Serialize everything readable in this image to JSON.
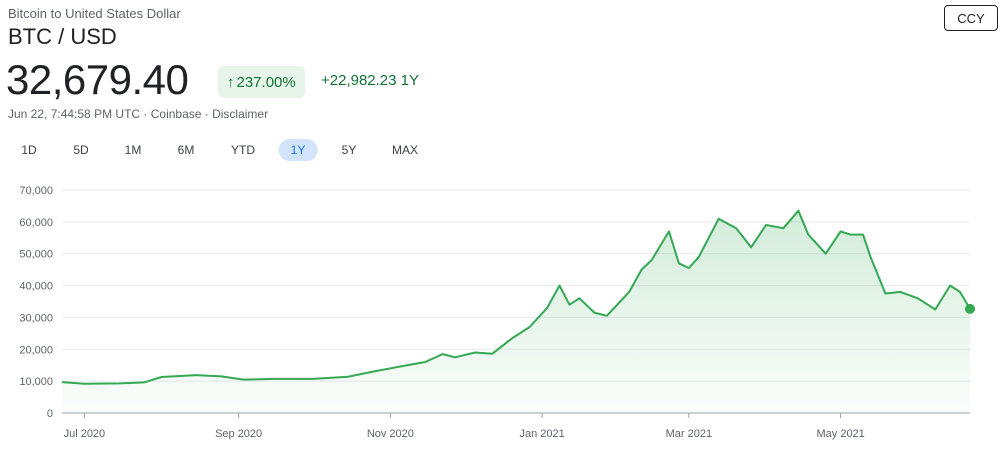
{
  "header": {
    "subtitle": "Bitcoin to United States Dollar",
    "pair": "BTC / USD",
    "price": "32,679.40",
    "percent_change": "237.00%",
    "percent_arrow_icon": "arrow-up-icon",
    "absolute_change": "+22,982.23 1Y",
    "meta": "Jun 22, 7:44:58 PM UTC · Coinbase · Disclaimer",
    "currency_button": "CCY"
  },
  "ranges": {
    "items": [
      "1D",
      "5D",
      "1M",
      "6M",
      "YTD",
      "1Y",
      "5Y",
      "MAX"
    ],
    "active": "1Y"
  },
  "colors": {
    "line": "#34a853",
    "fill": "#e6f4ea",
    "positive_text": "#137333",
    "active_range_bg": "#d2e3fc"
  },
  "chart_data": {
    "type": "area",
    "title": "",
    "xlabel": "",
    "ylabel": "",
    "ylim": [
      0,
      70000
    ],
    "y_ticks": [
      0,
      10000,
      20000,
      30000,
      40000,
      50000,
      60000,
      70000
    ],
    "y_tick_labels": [
      "0",
      "10,000",
      "20,000",
      "30,000",
      "40,000",
      "50,000",
      "60,000",
      "70,000"
    ],
    "x_range": [
      "2020-06-22",
      "2021-06-22"
    ],
    "x_ticks": [
      "2020-07-01",
      "2020-09-01",
      "2020-11-01",
      "2021-01-01",
      "2021-03-01",
      "2021-05-01"
    ],
    "x_tick_labels": [
      "Jul 2020",
      "Sep 2020",
      "Nov 2020",
      "Jan 2021",
      "Mar 2021",
      "May 2021"
    ],
    "grid": true,
    "series": [
      {
        "x": [
          "2020-06-22",
          "2020-07-01",
          "2020-07-15",
          "2020-07-25",
          "2020-08-01",
          "2020-08-15",
          "2020-08-25",
          "2020-09-03",
          "2020-09-15",
          "2020-10-01",
          "2020-10-15",
          "2020-10-25",
          "2020-11-05",
          "2020-11-15",
          "2020-11-22",
          "2020-11-27",
          "2020-12-05",
          "2020-12-12",
          "2020-12-20",
          "2020-12-27",
          "2021-01-03",
          "2021-01-08",
          "2021-01-12",
          "2021-01-16",
          "2021-01-22",
          "2021-01-27",
          "2021-02-05",
          "2021-02-10",
          "2021-02-14",
          "2021-02-21",
          "2021-02-25",
          "2021-03-01",
          "2021-03-05",
          "2021-03-13",
          "2021-03-20",
          "2021-03-26",
          "2021-04-01",
          "2021-04-08",
          "2021-04-14",
          "2021-04-18",
          "2021-04-25",
          "2021-05-01",
          "2021-05-05",
          "2021-05-10",
          "2021-05-13",
          "2021-05-19",
          "2021-05-25",
          "2021-06-01",
          "2021-06-08",
          "2021-06-14",
          "2021-06-18",
          "2021-06-22"
        ],
        "y": [
          9700,
          9200,
          9300,
          9600,
          11300,
          11900,
          11500,
          10500,
          10700,
          10700,
          11400,
          13000,
          14600,
          16000,
          18500,
          17500,
          19000,
          18600,
          23500,
          27000,
          33000,
          40000,
          34000,
          36000,
          31500,
          30500,
          38000,
          45000,
          48000,
          57000,
          47000,
          45500,
          49000,
          61000,
          58000,
          52000,
          59000,
          58000,
          63500,
          56000,
          50000,
          57000,
          56000,
          56000,
          49000,
          37500,
          38000,
          36000,
          32500,
          40000,
          38000,
          32679
        ]
      }
    ]
  }
}
